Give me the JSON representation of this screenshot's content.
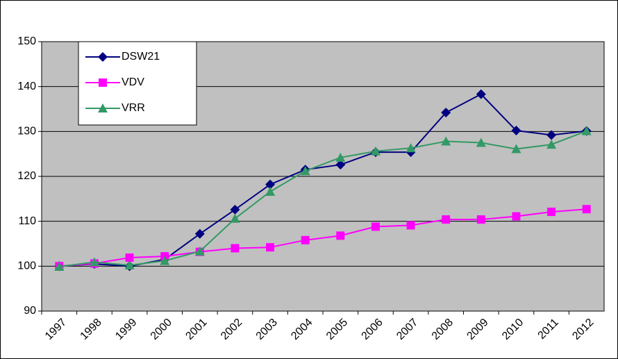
{
  "chart_data": {
    "type": "line",
    "categories": [
      "1997",
      "1998",
      "1999",
      "2000",
      "2001",
      "2002",
      "2003",
      "2004",
      "2005",
      "2006",
      "2007",
      "2008",
      "2009",
      "2010",
      "2011",
      "2012"
    ],
    "series": [
      {
        "name": "DSW21",
        "color": "#000080",
        "marker": "diamond",
        "values": [
          100,
          100.5,
          100,
          101.5,
          107.2,
          112.6,
          118.2,
          121.5,
          122.6,
          125.4,
          125.4,
          134.2,
          138.3,
          130.2,
          129.2,
          130.1
        ]
      },
      {
        "name": "VDV",
        "color": "#ff00ff",
        "marker": "square",
        "values": [
          100,
          100.6,
          101.9,
          102.2,
          103.2,
          104,
          104.2,
          105.8,
          106.8,
          108.8,
          109.1,
          110.4,
          110.4,
          111.1,
          112.1,
          112.7
        ]
      },
      {
        "name": "VRR",
        "color": "#339966",
        "marker": "triangle",
        "values": [
          99.9,
          100.9,
          100.2,
          101.2,
          103.3,
          110.6,
          116.6,
          121.2,
          124.2,
          125.6,
          126.3,
          127.8,
          127.5,
          126.1,
          127.1,
          130.1
        ]
      }
    ],
    "ylim": [
      90,
      150
    ],
    "yticks": [
      90,
      100,
      110,
      120,
      130,
      140,
      150
    ],
    "grid": true,
    "legend": "top-left",
    "plot_background": "#c0c0c0"
  }
}
